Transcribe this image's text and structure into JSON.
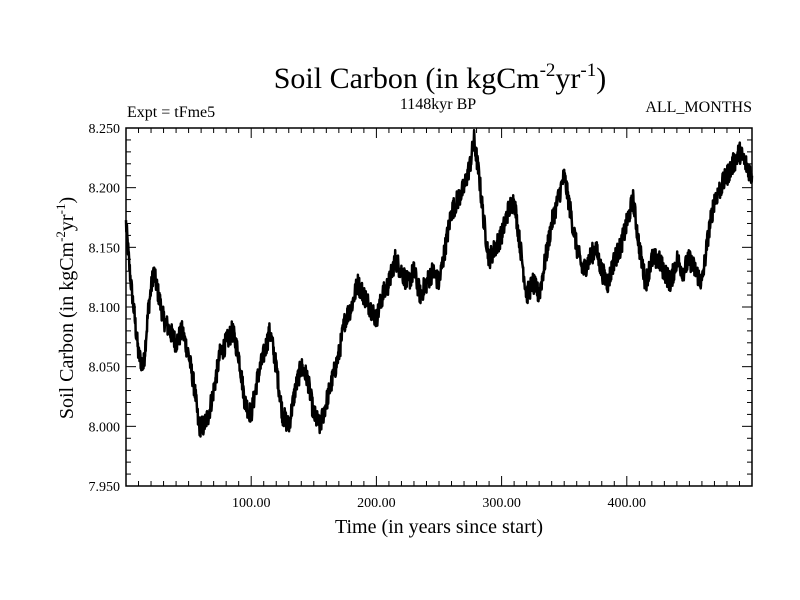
{
  "chart_data": {
    "type": "line",
    "title": "Soil Carbon (in kgCm",
    "title_sup1": "-2",
    "title_mid": "yr",
    "title_sup2": "-1",
    "title_end": ")",
    "left_label": "Expt = tFme5",
    "center_label": "1148kyr BP",
    "right_label": "ALL_MONTHS",
    "xlabel": "Time (in years since start)",
    "ylabel": "Soil Carbon (in kgCm",
    "ylabel_sup1": "-2",
    "ylabel_mid": "yr",
    "ylabel_sup2": "-1",
    "ylabel_end": ")",
    "xlim": [
      0,
      500
    ],
    "ylim": [
      7.95,
      8.25
    ],
    "x_ticks": [
      {
        "value": 100,
        "label": "100.00"
      },
      {
        "value": 200,
        "label": "200.00"
      },
      {
        "value": 300,
        "label": "300.00"
      },
      {
        "value": 400,
        "label": "400.00"
      }
    ],
    "y_ticks": [
      {
        "value": 7.95,
        "label": "7.950"
      },
      {
        "value": 8.0,
        "label": "8.000"
      },
      {
        "value": 8.05,
        "label": "8.050"
      },
      {
        "value": 8.1,
        "label": "8.100"
      },
      {
        "value": 8.15,
        "label": "8.150"
      },
      {
        "value": 8.2,
        "label": "8.200"
      },
      {
        "value": 8.25,
        "label": "8.250"
      }
    ],
    "series": [
      {
        "name": "Soil Carbon",
        "x": [
          0,
          3,
          6,
          10,
          14,
          18,
          22,
          26,
          30,
          35,
          40,
          45,
          50,
          55,
          58,
          62,
          66,
          70,
          75,
          80,
          85,
          90,
          95,
          100,
          105,
          110,
          115,
          120,
          125,
          130,
          135,
          140,
          145,
          150,
          155,
          160,
          165,
          170,
          175,
          180,
          185,
          190,
          195,
          200,
          205,
          210,
          215,
          220,
          225,
          230,
          235,
          240,
          245,
          250,
          255,
          260,
          265,
          270,
          275,
          278,
          282,
          286,
          290,
          295,
          300,
          305,
          310,
          315,
          320,
          325,
          330,
          335,
          340,
          345,
          350,
          355,
          360,
          365,
          370,
          375,
          380,
          385,
          390,
          395,
          400,
          405,
          410,
          415,
          420,
          425,
          430,
          435,
          440,
          445,
          450,
          455,
          460,
          465,
          470,
          475,
          480,
          485,
          490,
          495,
          500
        ],
        "y": [
          8.17,
          8.13,
          8.1,
          8.06,
          8.05,
          8.1,
          8.13,
          8.11,
          8.09,
          8.08,
          8.07,
          8.08,
          8.06,
          8.03,
          8.0,
          8.0,
          8.01,
          8.03,
          8.06,
          8.07,
          8.08,
          8.06,
          8.02,
          8.01,
          8.04,
          8.06,
          8.08,
          8.05,
          8.01,
          8.0,
          8.03,
          8.05,
          8.04,
          8.01,
          8.0,
          8.02,
          8.04,
          8.06,
          8.09,
          8.1,
          8.12,
          8.11,
          8.1,
          8.09,
          8.11,
          8.12,
          8.14,
          8.13,
          8.12,
          8.13,
          8.11,
          8.12,
          8.13,
          8.12,
          8.15,
          8.18,
          8.19,
          8.2,
          8.22,
          8.24,
          8.21,
          8.17,
          8.14,
          8.15,
          8.16,
          8.18,
          8.19,
          8.15,
          8.11,
          8.12,
          8.11,
          8.14,
          8.17,
          8.19,
          8.21,
          8.18,
          8.15,
          8.13,
          8.14,
          8.15,
          8.13,
          8.12,
          8.14,
          8.15,
          8.17,
          8.19,
          8.15,
          8.12,
          8.14,
          8.14,
          8.13,
          8.12,
          8.14,
          8.13,
          8.14,
          8.13,
          8.12,
          8.16,
          8.19,
          8.2,
          8.21,
          8.22,
          8.23,
          8.22,
          8.21
        ]
      }
    ]
  }
}
